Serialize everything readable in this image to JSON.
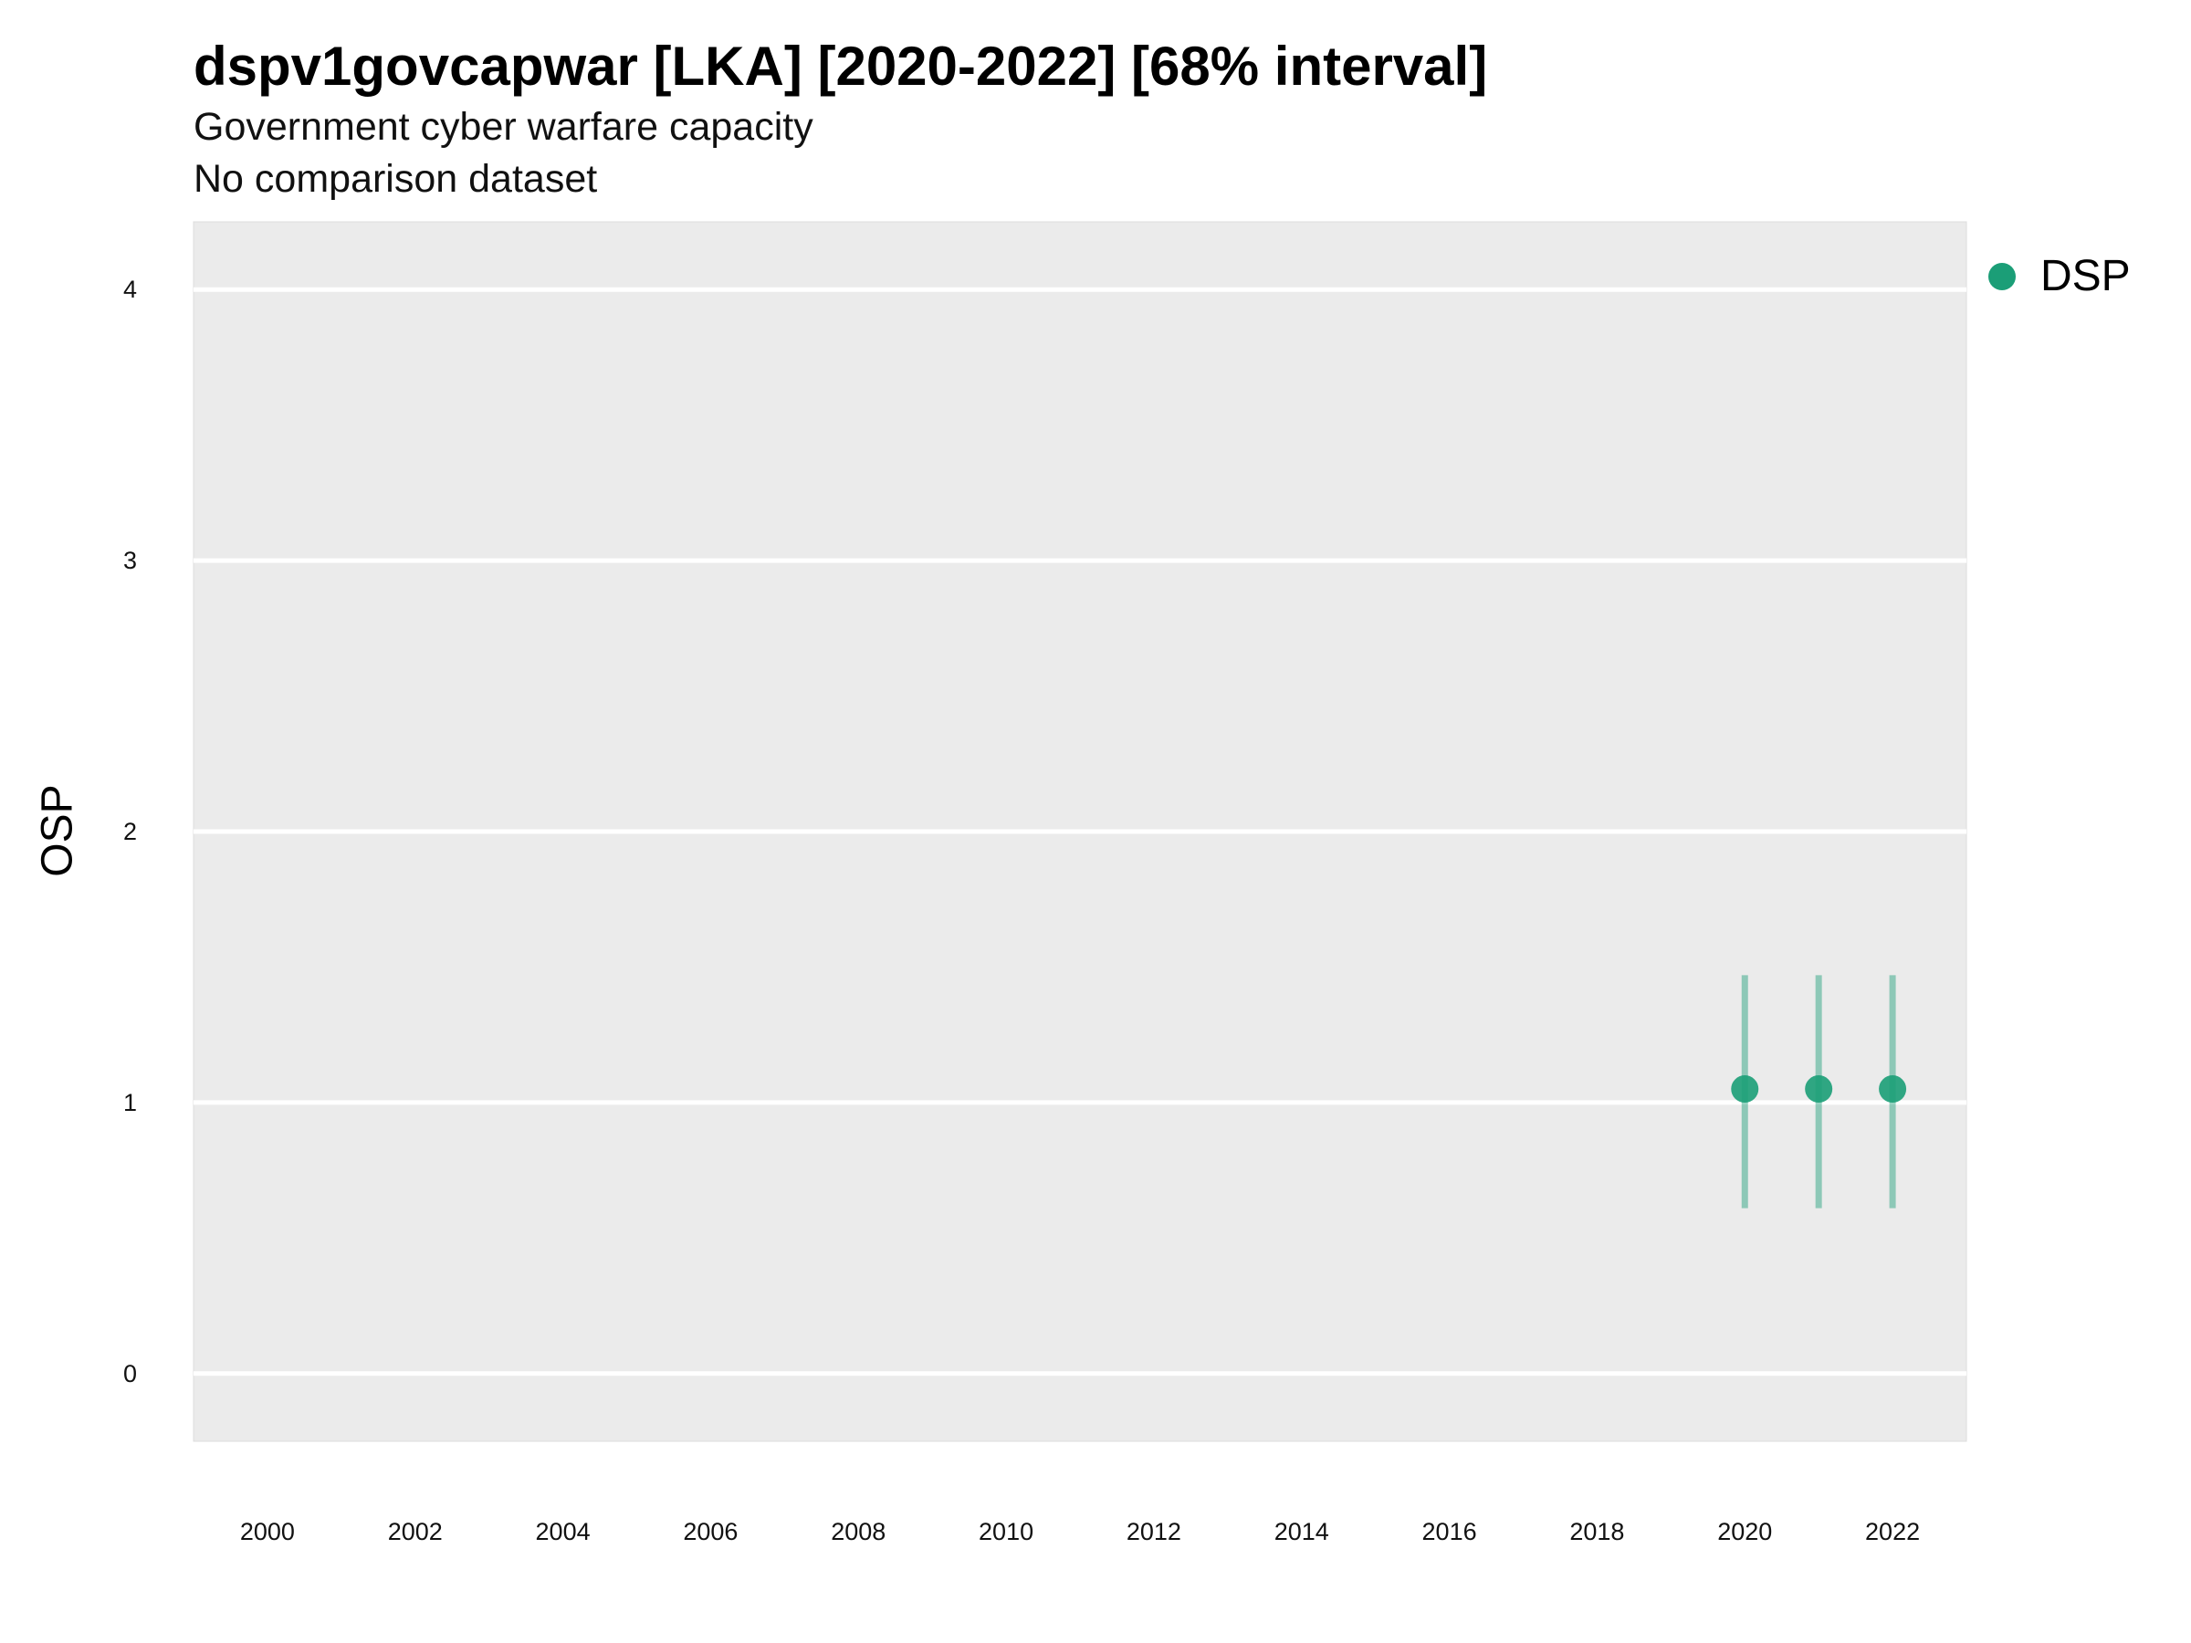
{
  "chart_data": {
    "type": "scatter",
    "title": "dspv1govcapwar [LKA] [2020-2022] [68% interval]",
    "subtitle": [
      "Government cyber warfare capacity",
      "No comparison dataset"
    ],
    "xlabel": "",
    "ylabel": "OSP",
    "xlim": [
      1999,
      2023
    ],
    "ylim": [
      -0.25,
      4.25
    ],
    "x_ticks": [
      2000,
      2002,
      2004,
      2006,
      2008,
      2010,
      2012,
      2014,
      2016,
      2018,
      2020,
      2022
    ],
    "y_ticks": [
      0,
      1,
      2,
      3,
      4
    ],
    "grid": "horizontal major lines",
    "legend_position": "top-right",
    "series": [
      {
        "name": "DSP",
        "color": "#1b9e77",
        "points": [
          {
            "x": 2020,
            "y": 1.05,
            "low": 0.61,
            "high": 1.47
          },
          {
            "x": 2021,
            "y": 1.05,
            "low": 0.61,
            "high": 1.47
          },
          {
            "x": 2022,
            "y": 1.05,
            "low": 0.61,
            "high": 1.47
          }
        ]
      }
    ]
  },
  "colors": {
    "panel_background": "#ebebeb",
    "grid": "#ffffff",
    "series": "#1b9e77"
  }
}
